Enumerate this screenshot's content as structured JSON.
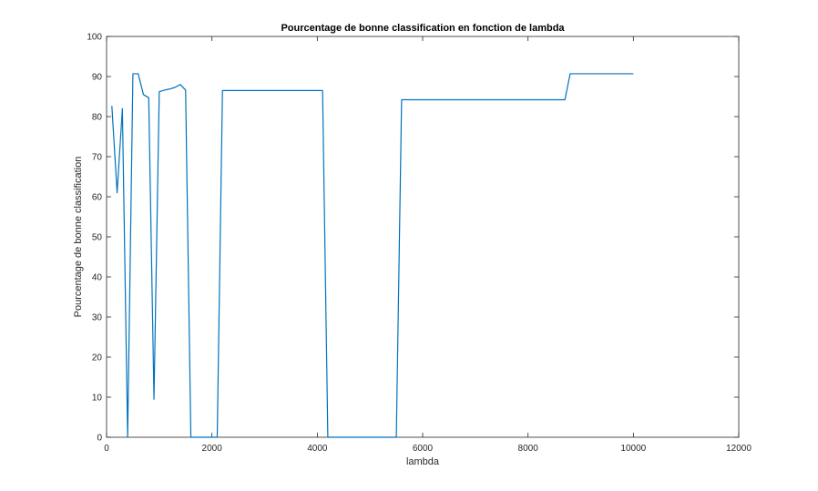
{
  "chart_data": {
    "type": "line",
    "title": "Pourcentage de bonne classification en fonction de lambda",
    "xlabel": "lambda",
    "ylabel": "Pourcentage de bonne classification",
    "xlim": [
      0,
      12000
    ],
    "ylim": [
      0,
      100
    ],
    "xticks": [
      0,
      2000,
      4000,
      6000,
      8000,
      10000,
      12000
    ],
    "yticks": [
      0,
      10,
      20,
      30,
      40,
      50,
      60,
      70,
      80,
      90,
      100
    ],
    "grid": false,
    "line_color": "#0072BD",
    "series": [
      {
        "x": [
          100,
          200,
          300,
          400,
          500,
          600,
          700,
          800,
          900,
          1000,
          1100,
          1200,
          1300,
          1400,
          1500,
          1600,
          1700,
          1800,
          1900,
          2000,
          2100,
          2200,
          2300,
          2400,
          2500,
          4100,
          4200,
          4300,
          5500,
          5600,
          5700,
          8700,
          8800,
          8900,
          10000
        ],
        "y": [
          82.7,
          61,
          82,
          0,
          90.7,
          90.7,
          85.5,
          84.7,
          9.5,
          86.2,
          86.6,
          86.9,
          87.3,
          88,
          86.6,
          0,
          0,
          0,
          0,
          0,
          0,
          86.5,
          86.5,
          86.5,
          86.5,
          86.5,
          0,
          0,
          0,
          84.2,
          84.2,
          84.2,
          90.7,
          90.7,
          90.7
        ]
      }
    ]
  }
}
